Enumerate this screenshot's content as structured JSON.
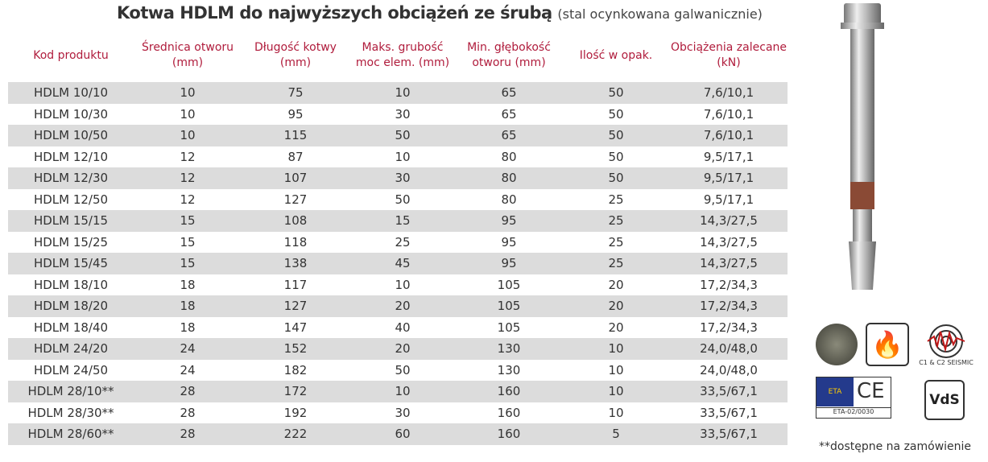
{
  "title": {
    "main": "Kotwa HDLM do najwyższych obciążeń ze śrubą",
    "sub": "(stal ocynkowana galwanicznie)"
  },
  "headers": [
    "Kod produktu",
    "Średnica otworu (mm)",
    "Długość kotwy (mm)",
    "Maks. grubość moc elem. (mm)",
    "Min. głębokość otworu (mm)",
    "Ilość w opak.",
    "Obciążenia zalecane (kN)"
  ],
  "rows": [
    [
      "HDLM 10/10",
      "10",
      "75",
      "10",
      "65",
      "50",
      "7,6/10,1"
    ],
    [
      "HDLM 10/30",
      "10",
      "95",
      "30",
      "65",
      "50",
      "7,6/10,1"
    ],
    [
      "HDLM 10/50",
      "10",
      "115",
      "50",
      "65",
      "50",
      "7,6/10,1"
    ],
    [
      "HDLM 12/10",
      "12",
      "87",
      "10",
      "80",
      "50",
      "9,5/17,1"
    ],
    [
      "HDLM 12/30",
      "12",
      "107",
      "30",
      "80",
      "50",
      "9,5/17,1"
    ],
    [
      "HDLM 12/50",
      "12",
      "127",
      "50",
      "80",
      "25",
      "9,5/17,1"
    ],
    [
      "HDLM 15/15",
      "15",
      "108",
      "15",
      "95",
      "25",
      "14,3/27,5"
    ],
    [
      "HDLM 15/25",
      "15",
      "118",
      "25",
      "95",
      "25",
      "14,3/27,5"
    ],
    [
      "HDLM 15/45",
      "15",
      "138",
      "45",
      "95",
      "25",
      "14,3/27,5"
    ],
    [
      "HDLM 18/10",
      "18",
      "117",
      "10",
      "105",
      "20",
      "17,2/34,3"
    ],
    [
      "HDLM 18/20",
      "18",
      "127",
      "20",
      "105",
      "20",
      "17,2/34,3"
    ],
    [
      "HDLM 18/40",
      "18",
      "147",
      "40",
      "105",
      "20",
      "17,2/34,3"
    ],
    [
      "HDLM 24/20",
      "24",
      "152",
      "20",
      "130",
      "10",
      "24,0/48,0"
    ],
    [
      "HDLM 24/50",
      "24",
      "182",
      "50",
      "130",
      "10",
      "24,0/48,0"
    ],
    [
      "HDLM 28/10**",
      "28",
      "172",
      "10",
      "160",
      "10",
      "33,5/67,1"
    ],
    [
      "HDLM 28/30**",
      "28",
      "192",
      "30",
      "160",
      "10",
      "33,5/67,1"
    ],
    [
      "HDLM 28/60**",
      "28",
      "222",
      "60",
      "160",
      "5",
      "33,5/67,1"
    ]
  ],
  "badges": {
    "seismic": "C1 & C2 SEISMIC",
    "eta": "ETA",
    "eta_code": "ETA-02/0030",
    "ce": "CE",
    "vds": "VdS"
  },
  "note": "**dostępne na zamówienie",
  "colors": {
    "header": "#b01c3c",
    "row_alt": "#dcdcdc"
  }
}
